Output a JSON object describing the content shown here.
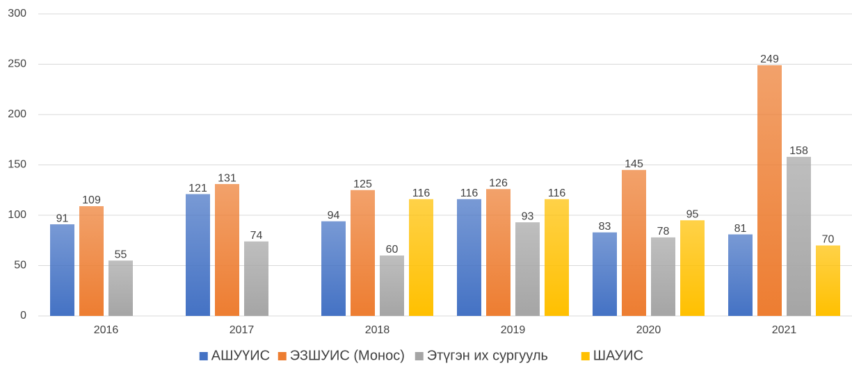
{
  "chart_data": {
    "type": "bar",
    "categories": [
      "2016",
      "2017",
      "2018",
      "2019",
      "2020",
      "2021"
    ],
    "series": [
      {
        "name": "АШУҮИС",
        "color": "#4472c4",
        "values": [
          91,
          121,
          94,
          116,
          83,
          81
        ]
      },
      {
        "name": "ЭЗШУИС (Монос)",
        "color": "#ed7d31",
        "values": [
          109,
          131,
          125,
          126,
          145,
          249
        ]
      },
      {
        "name": "Этүгэн их сургууль",
        "color": "#a5a5a5",
        "values": [
          55,
          74,
          60,
          93,
          78,
          158
        ]
      },
      {
        "name": "ШАУИС",
        "color": "#ffc000",
        "values": [
          null,
          null,
          116,
          116,
          95,
          70
        ]
      }
    ],
    "ylim": [
      0,
      300
    ],
    "yticks": [
      0,
      50,
      100,
      150,
      200,
      250,
      300
    ],
    "grid": true,
    "legend": "bottom"
  }
}
